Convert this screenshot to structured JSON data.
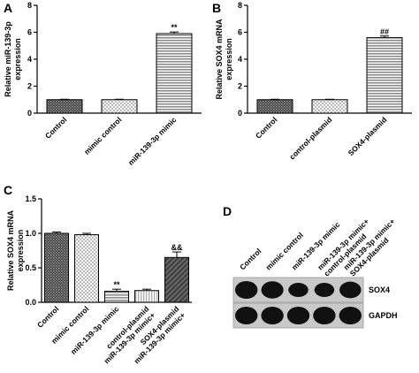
{
  "panels": {
    "a": {
      "letter": "A"
    },
    "b": {
      "letter": "B"
    },
    "c": {
      "letter": "C"
    },
    "d": {
      "letter": "D"
    }
  },
  "chart_data": [
    {
      "id": "A",
      "type": "bar",
      "categories": [
        "Control",
        "mimic control",
        "miR-139-3p mimic"
      ],
      "values": [
        1.0,
        1.0,
        5.9
      ],
      "errors": [
        0.03,
        0.03,
        0.12
      ],
      "significance": [
        "",
        "",
        "**"
      ],
      "patterns": [
        "dense",
        "check",
        "hstripe"
      ],
      "ylabel": [
        "Relative miR-139-3p",
        "expression"
      ],
      "ylim": [
        0,
        8
      ],
      "yticks": [
        0,
        2,
        4,
        6,
        8
      ]
    },
    {
      "id": "B",
      "type": "bar",
      "categories": [
        "Control",
        "control-plasmid",
        "SOX4-plasmid"
      ],
      "values": [
        1.0,
        1.0,
        5.6
      ],
      "errors": [
        0.03,
        0.03,
        0.12
      ],
      "significance": [
        "",
        "",
        "##"
      ],
      "patterns": [
        "dense",
        "check",
        "hstripe"
      ],
      "ylabel": [
        "Relative SOX4 mRNA",
        "expression"
      ],
      "ylim": [
        0,
        8
      ],
      "yticks": [
        0,
        2,
        4,
        6,
        8
      ]
    },
    {
      "id": "C",
      "type": "bar",
      "categories": [
        "Control",
        "mimic control",
        "miR-139-3p mimic",
        [
          "miR-139-3p mimic+",
          "control-plasmid"
        ],
        [
          "miR-139-3p mimic+",
          "SOX4-plasmid"
        ]
      ],
      "values": [
        1.0,
        0.98,
        0.16,
        0.17,
        0.65
      ],
      "errors": [
        0.02,
        0.02,
        0.03,
        0.02,
        0.08
      ],
      "significance": [
        "",
        "",
        "**",
        "",
        "&&"
      ],
      "patterns": [
        "dense",
        "check",
        "hstripe",
        "vstripe",
        "diag"
      ],
      "ylabel": [
        "Relative SOX4 mRNA",
        "expression"
      ],
      "ylim": [
        0,
        1.5
      ],
      "yticks": [
        "0.0",
        "0.5",
        "1.0",
        "1.5"
      ]
    }
  ],
  "blot": {
    "lanes": [
      "Control",
      "mimic control",
      "miR-139-3p mimic",
      [
        "miR-139-3p mimic+",
        "control-plasmid"
      ],
      [
        "miR-139-3p mimic+",
        "SOX4-plasmid"
      ]
    ],
    "rows": [
      {
        "label": "SOX4",
        "intensity": [
          1.0,
          0.95,
          0.55,
          0.55,
          0.85
        ]
      },
      {
        "label": "GAPDH",
        "intensity": [
          1.0,
          1.0,
          1.0,
          1.0,
          1.0
        ]
      }
    ]
  }
}
